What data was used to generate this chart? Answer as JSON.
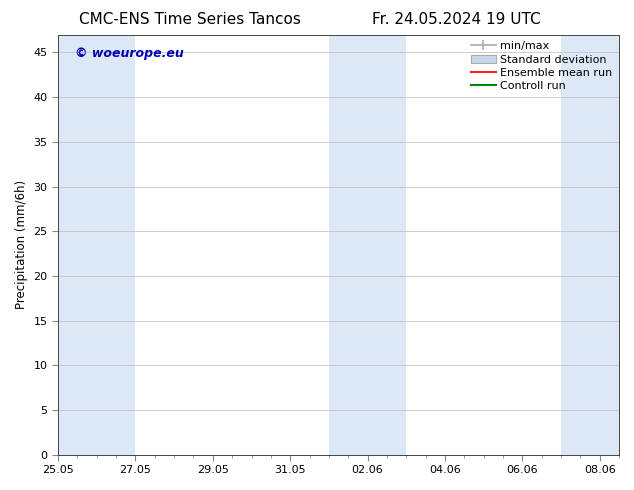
{
  "title_left": "CMC-ENS Time Series Tancos",
  "title_right": "Fr. 24.05.2024 19 UTC",
  "ylabel": "Precipitation (mm/6h)",
  "ylim": [
    0,
    47
  ],
  "yticks": [
    0,
    5,
    10,
    15,
    20,
    25,
    30,
    35,
    40,
    45
  ],
  "xlim": [
    0,
    14
  ],
  "xlim_labels": [
    "25.05",
    "27.05",
    "29.05",
    "31.05",
    "02.06",
    "04.06",
    "06.06",
    "08.06"
  ],
  "xlim_positions": [
    0,
    2,
    4,
    6,
    8,
    10,
    12,
    14
  ],
  "shaded_bands": [
    [
      0,
      1
    ],
    [
      1,
      2
    ],
    [
      7,
      8
    ],
    [
      8,
      9
    ],
    [
      13,
      14
    ],
    [
      14,
      14.5
    ]
  ],
  "background_color": "#ffffff",
  "band_color": "#dce8f5",
  "legend_items": [
    {
      "label": "min/max",
      "color": "#aaaaaa",
      "style": "errorbar"
    },
    {
      "label": "Standard deviation",
      "color": "#ccccdd",
      "style": "fill"
    },
    {
      "label": "Ensemble mean run",
      "color": "#ff2222",
      "style": "line"
    },
    {
      "label": "Controll run",
      "color": "#008800",
      "style": "line"
    }
  ],
  "watermark": "© woeurope.eu",
  "watermark_color": "#0000bb",
  "grid_color": "#bbbbbb",
  "title_fontsize": 11,
  "axis_fontsize": 8.5,
  "tick_fontsize": 8,
  "legend_fontsize": 8
}
